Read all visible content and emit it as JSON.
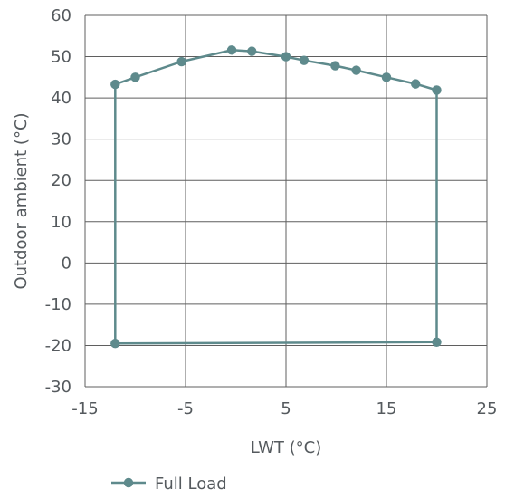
{
  "chart_data": {
    "type": "line",
    "title": "",
    "xlabel": "LWT (°C)",
    "ylabel": "Outdoor ambient (°C)",
    "xlim": [
      -15,
      25
    ],
    "ylim": [
      -30,
      60
    ],
    "x_ticks": [
      "-15",
      "-5",
      "5",
      "15",
      "25"
    ],
    "y_ticks": [
      "60",
      "50",
      "40",
      "30",
      "20",
      "10",
      "0",
      "-10",
      "-20",
      "-30"
    ],
    "grid": true,
    "legend_position": "bottom",
    "series": [
      {
        "name": "Full Load",
        "color": "#5e8a8c",
        "points": [
          [
            -12,
            -19.5
          ],
          [
            -12,
            43.3
          ],
          [
            -10,
            45
          ],
          [
            -5.4,
            48.8
          ],
          [
            -0.4,
            51.6
          ],
          [
            1.6,
            51.3
          ],
          [
            5,
            50
          ],
          [
            6.8,
            49.1
          ],
          [
            9.9,
            47.8
          ],
          [
            12,
            46.7
          ],
          [
            15,
            45
          ],
          [
            17.9,
            43.4
          ],
          [
            20,
            41.9
          ],
          [
            20,
            -19.2
          ],
          [
            -12,
            -19.5
          ]
        ]
      }
    ]
  }
}
